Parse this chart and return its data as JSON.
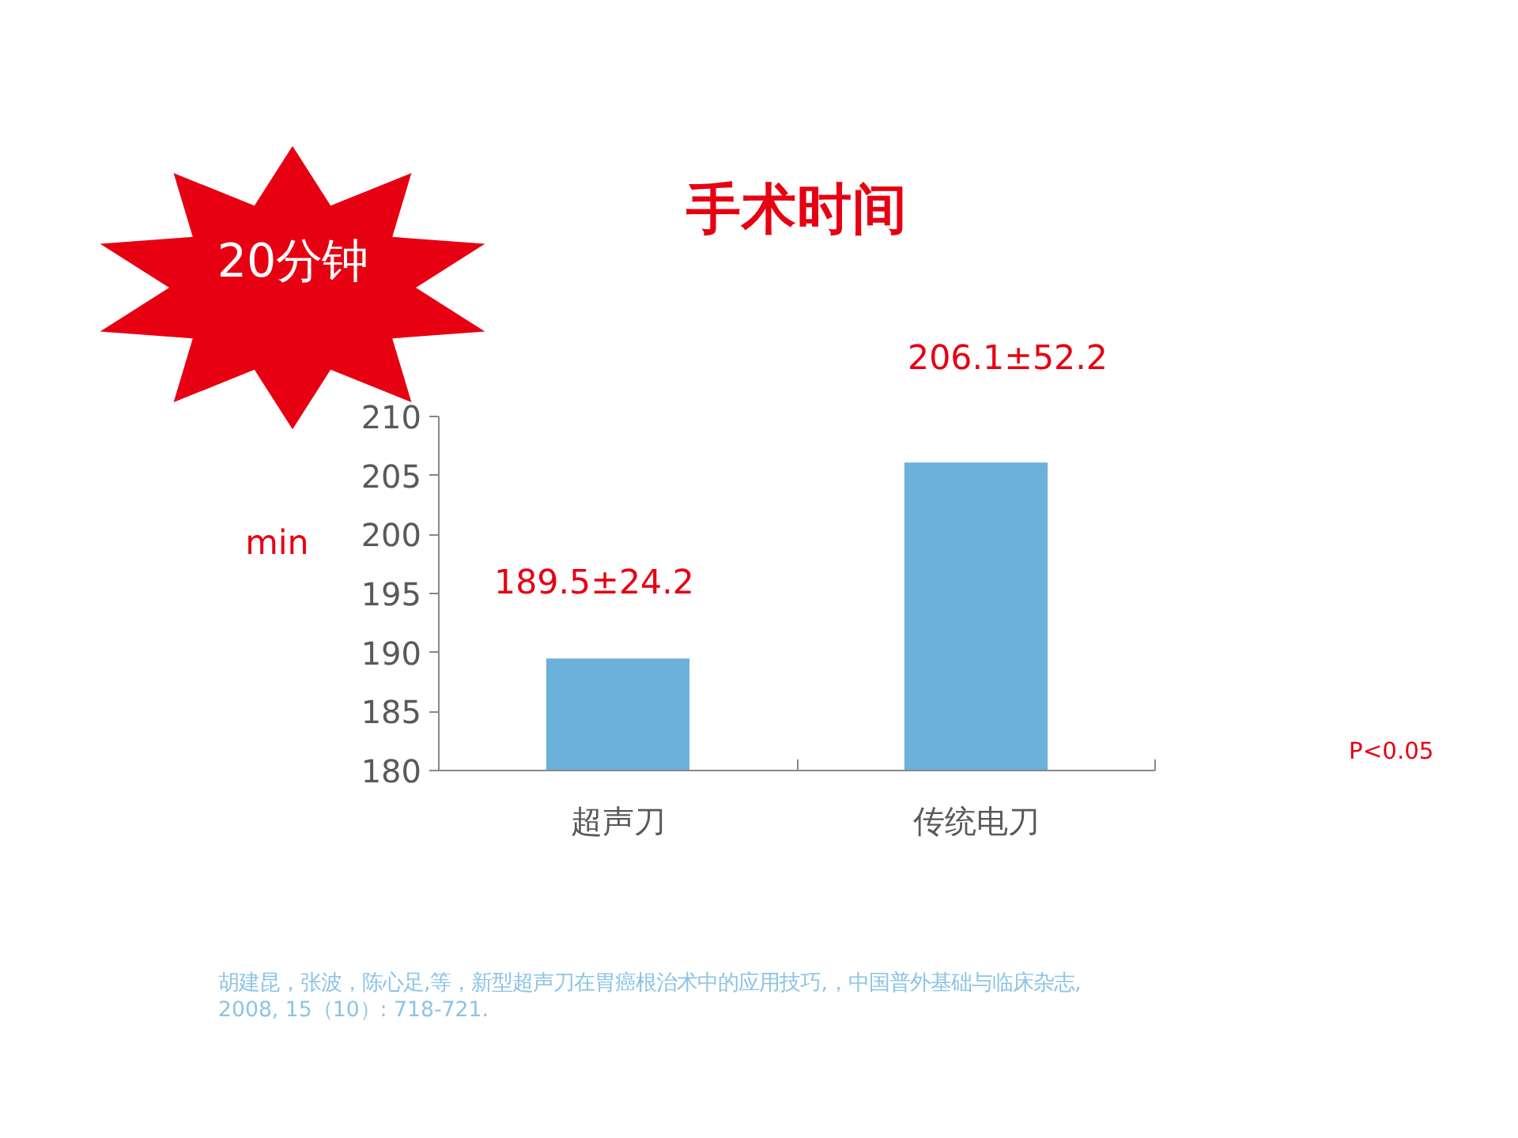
{
  "chart_data": {
    "type": "bar",
    "title": "手术时间",
    "categories": [
      "超声刀",
      "传统电刀"
    ],
    "values": [
      189.5,
      206.1
    ],
    "color": "#6cb0dc",
    "value_labels": [
      "189.5±24.2",
      "206.1±52.2"
    ],
    "ylabel": "min",
    "ylim": [
      180,
      210
    ],
    "yticks": [
      180,
      185,
      190,
      195,
      200,
      205,
      210
    ],
    "grid": false,
    "annotations": [
      "20分钟",
      "P<0.05",
      "胡建昆，张波，陈心足,等，新型超声刀在胃癌根治术中的应用技巧,，中国普外基础与临床杂志,\n2008, 15（10）: 718-721."
    ]
  }
}
